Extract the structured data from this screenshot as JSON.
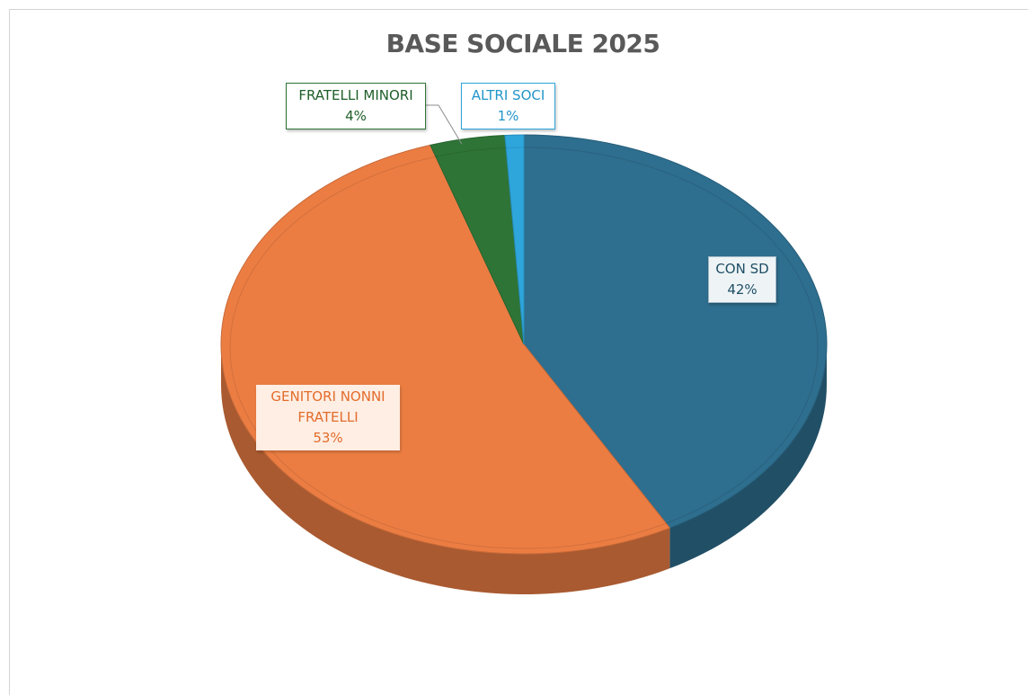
{
  "chart_data": {
    "type": "pie",
    "title": "BASE SOCIALE 2025",
    "slices": [
      {
        "category": "CON SD",
        "value": 42,
        "label": "42%",
        "color": "#2e6e8e"
      },
      {
        "category": "GENITORI NONNI FRATELLI",
        "value": 53,
        "label": "53%",
        "color": "#eb7d43"
      },
      {
        "category": "FRATELLI MINORI",
        "value": 4,
        "label": "4%",
        "color": "#2e7436"
      },
      {
        "category": "ALTRI SOCI",
        "value": 1,
        "label": "1%",
        "color": "#2ea6dc"
      }
    ],
    "labels": {
      "con_sd": {
        "name": "CON SD",
        "pct": "42%"
      },
      "genitori": {
        "name_line1": "GENITORI NONNI",
        "name_line2": "FRATELLI",
        "pct": "53%"
      },
      "fratelli_minori": {
        "name": "FRATELLI MINORI",
        "pct": "4%"
      },
      "altri_soci": {
        "name": "ALTRI SOCI",
        "pct": "1%"
      }
    },
    "style": "3d-pie",
    "legend": "none"
  }
}
